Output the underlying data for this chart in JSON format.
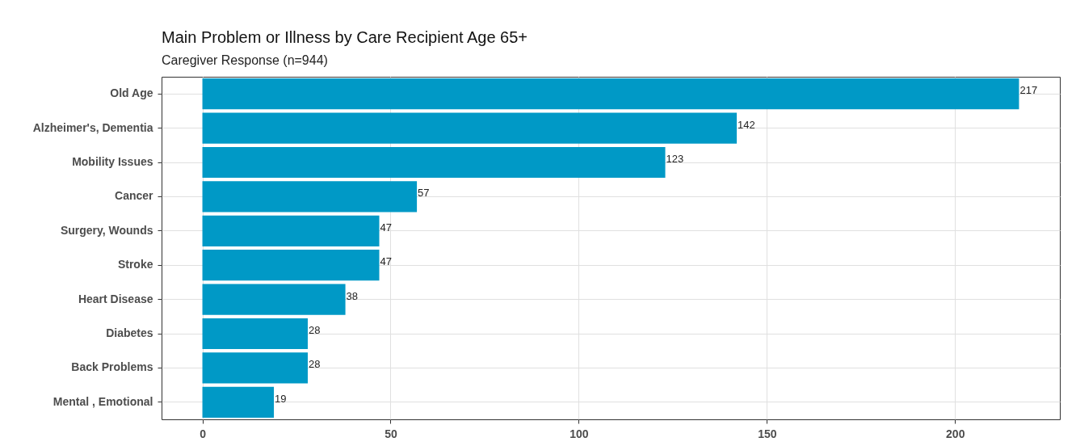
{
  "chart_data": {
    "type": "bar",
    "orientation": "horizontal",
    "title": "Main Problem or Illness by Care Recipient Age 65+",
    "subtitle": "Caregiver Response (n=944)",
    "categories": [
      "Old Age",
      "Alzheimer's, Dementia",
      "Mobility Issues",
      "Cancer",
      "Surgery, Wounds",
      "Stroke",
      "Heart Disease",
      "Diabetes",
      "Back Problems",
      "Mental , Emotional"
    ],
    "values": [
      217,
      142,
      123,
      57,
      47,
      47,
      38,
      28,
      28,
      19
    ],
    "color": "#0099c6",
    "data_labels": true,
    "xlim": [
      -10.85,
      227.85
    ],
    "xticks": [
      0,
      50,
      100,
      150,
      200
    ],
    "grid": true
  }
}
